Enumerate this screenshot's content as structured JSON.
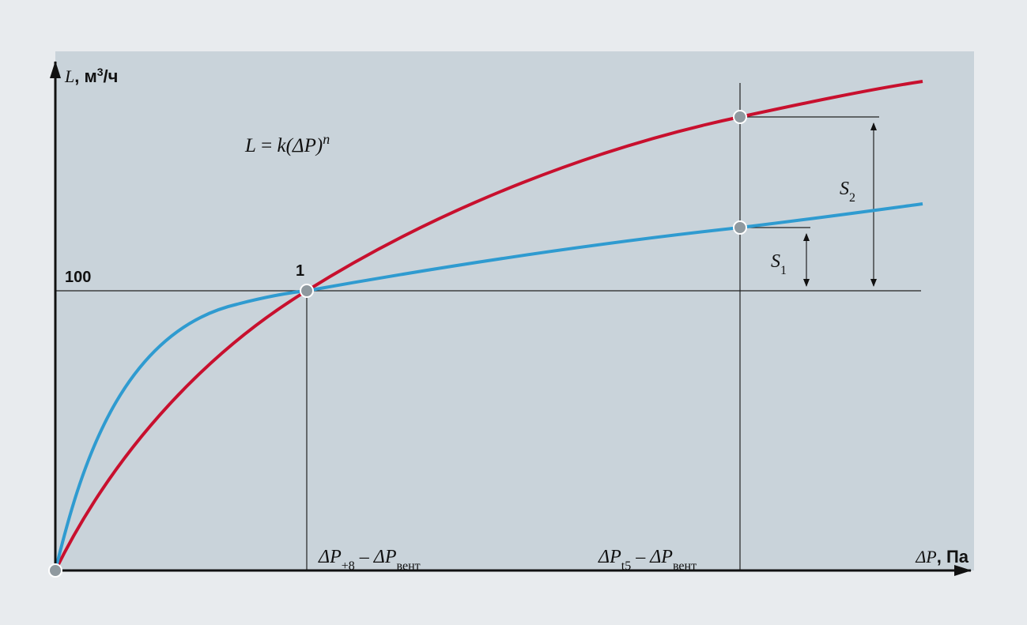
{
  "y_axis": {
    "symbol": "L",
    "unit": ", м",
    "unit_sup": "3",
    "unit_rest": "/ч",
    "tick": "100"
  },
  "x_axis": {
    "symbol": "ΔP",
    "unit": ", Па",
    "marks": [
      {
        "base": "ΔP",
        "sub": "+8",
        "minus": " – ",
        "base2": "ΔP",
        "sub2": "вент"
      },
      {
        "base": "ΔP",
        "sub": "t5",
        "minus": " – ",
        "base2": "ΔP",
        "sub2": "вент"
      }
    ]
  },
  "formula": {
    "lhs": "L",
    "eq": " = ",
    "rhs": "k(ΔP)",
    "sup": "n"
  },
  "point_label": "1",
  "spans": [
    {
      "base": "S",
      "sub": "1"
    },
    {
      "base": "S",
      "sub": "2"
    }
  ]
}
